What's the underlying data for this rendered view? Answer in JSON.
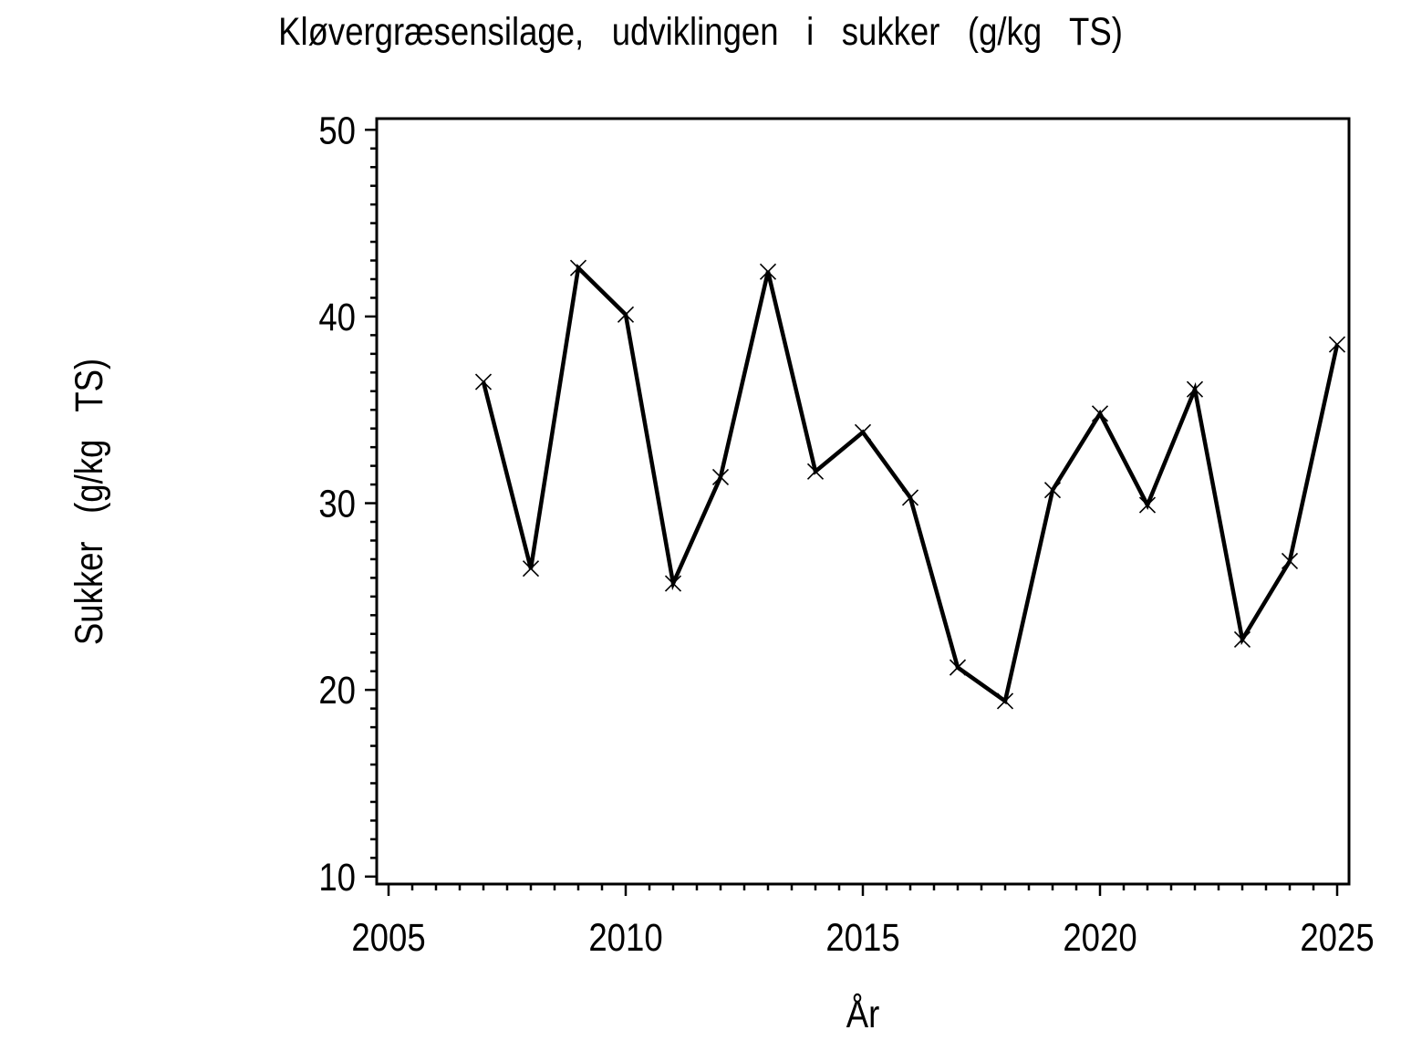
{
  "chart_data": {
    "type": "line",
    "title": "Kløvergræsensilage,  udviklingen  i  sukker  (g/kg  TS)",
    "xlabel": "År",
    "ylabel": "Sukker  (g/kg  TS)",
    "series": [
      {
        "name": "Sukker",
        "x": [
          2007,
          2008,
          2009,
          2010,
          2011,
          2012,
          2013,
          2014,
          2015,
          2016,
          2017,
          2018,
          2019,
          2020,
          2021,
          2022,
          2023,
          2024,
          2025
        ],
        "values": [
          36.5,
          26.5,
          42.6,
          40.1,
          25.7,
          31.4,
          42.4,
          31.7,
          33.8,
          30.3,
          21.2,
          19.4,
          30.7,
          34.8,
          29.9,
          36.1,
          22.7,
          26.9,
          38.5
        ]
      }
    ],
    "marker": "x",
    "line_color": "#000000",
    "text_color": "#000000",
    "background": "#ffffff",
    "grid": false,
    "legend_position": "none",
    "xlim": [
      2004.75,
      2025.25
    ],
    "ylim": [
      9.6,
      50.6
    ],
    "x_major_ticks": [
      2005,
      2010,
      2015,
      2020,
      2025
    ],
    "x_minor_step": 0.5,
    "y_major_ticks": [
      10,
      20,
      30,
      40,
      50
    ],
    "y_minor_step": 1
  }
}
